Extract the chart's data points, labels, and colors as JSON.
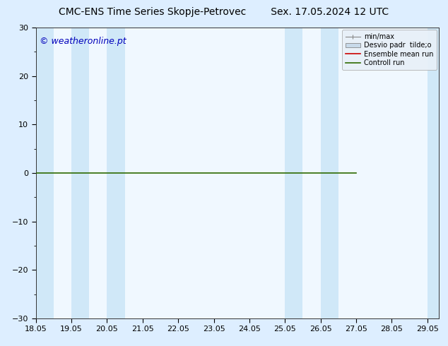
{
  "title": "CMC-ENS Time Series Skopje-Petrovec        Sex. 17.05.2024 12 UTC",
  "watermark": "© weatheronline.pt",
  "watermark_color": "#0000bb",
  "ylim": [
    -30,
    30
  ],
  "yticks": [
    -30,
    -20,
    -10,
    0,
    10,
    20,
    30
  ],
  "xlim_start": 18.05,
  "xlim_end": 29.38,
  "xtick_labels": [
    "18.05",
    "19.05",
    "20.05",
    "21.05",
    "22.05",
    "23.05",
    "24.05",
    "25.05",
    "26.05",
    "27.05",
    "28.05",
    "29.05"
  ],
  "xtick_positions": [
    18.05,
    19.05,
    20.05,
    21.05,
    22.05,
    23.05,
    24.05,
    25.05,
    26.05,
    27.05,
    28.05,
    29.05
  ],
  "shaded_bands": [
    [
      18.05,
      18.55
    ],
    [
      19.05,
      19.55
    ],
    [
      20.05,
      20.55
    ],
    [
      25.05,
      25.55
    ],
    [
      26.05,
      26.55
    ],
    [
      29.05,
      29.38
    ]
  ],
  "band_color": "#d0e8f8",
  "line_color_control": "#2d6a00",
  "line_color_ensemble": "#cc0000",
  "bg_color": "#ddeeff",
  "plot_bg": "#f0f8ff",
  "legend_labels": [
    "min/max",
    "Desvio padr  tilde;o",
    "Ensemble mean run",
    "Controll run"
  ],
  "legend_line_colors": [
    "#999999",
    "#aaaaaa",
    "#cc0000",
    "#2d6a00"
  ],
  "title_fontsize": 10,
  "tick_fontsize": 8,
  "watermark_fontsize": 9,
  "line_end_x": 27.05
}
